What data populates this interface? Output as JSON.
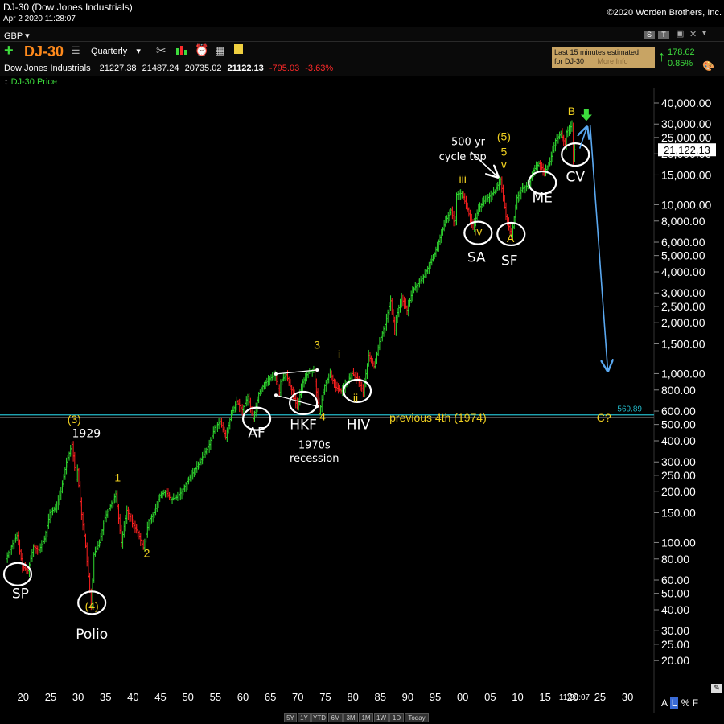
{
  "window": {
    "title": "DJ-30 (Dow Jones Industrials)",
    "copyright": "©2020 Worden Brothers, Inc.",
    "datetime": "Apr 2 2020 11:28:07"
  },
  "toolbar": {
    "currency": "GBP",
    "symbol": "DJ-30",
    "period": "Quarterly",
    "right_buttons": [
      "S",
      "T"
    ],
    "notice_line1": "Last 15 minutes estimated",
    "notice_line2": "for DJ-30",
    "notice_more": "More Info",
    "change": "178.62",
    "change_pct": "0.85%"
  },
  "quote": {
    "name": "Dow Jones Industrials",
    "open": "21227.38",
    "high": "21487.24",
    "low": "20735.02",
    "close": "21122.13",
    "change": "-795.03",
    "change_pct": "-3.63%"
  },
  "legend": {
    "series": "DJ-30 Price"
  },
  "chart_data": {
    "type": "candlestick",
    "yscale": "log",
    "ylim": [
      16,
      50000
    ],
    "xlim": [
      1917,
      2031
    ],
    "current_price_label": "21,122.13",
    "y_ticks": [
      "40,000.00",
      "30,000.00",
      "25,000.00",
      "20,000.00",
      "15,000.00",
      "10,000.00",
      "8,000.00",
      "6,000.00",
      "5,000.00",
      "4,000.00",
      "3,000.00",
      "2,500.00",
      "2,000.00",
      "1,500.00",
      "1,000.00",
      "800.00",
      "600.00",
      "500.00",
      "400.00",
      "300.00",
      "250.00",
      "200.00",
      "150.00",
      "100.00",
      "80.00",
      "60.00",
      "50.00",
      "40.00",
      "30.00",
      "25.00",
      "20.00"
    ],
    "y_tick_values": [
      40000,
      30000,
      25000,
      20000,
      15000,
      10000,
      8000,
      6000,
      5000,
      4000,
      3000,
      2500,
      2000,
      1500,
      1000,
      800,
      600,
      500,
      400,
      300,
      250,
      200,
      150,
      100,
      80,
      60,
      50,
      40,
      30,
      25,
      20
    ],
    "x_ticks": [
      "20",
      "25",
      "30",
      "35",
      "40",
      "45",
      "50",
      "55",
      "60",
      "65",
      "70",
      "75",
      "80",
      "85",
      "90",
      "95",
      "00",
      "05",
      "10",
      "15",
      "20",
      "25",
      "30"
    ],
    "x_tick_years": [
      1920,
      1925,
      1930,
      1935,
      1940,
      1945,
      1950,
      1955,
      1960,
      1965,
      1970,
      1975,
      1980,
      1985,
      1990,
      1995,
      2000,
      2005,
      2010,
      2015,
      2020,
      2025,
      2030
    ],
    "time_label": "11:28:07",
    "price_path": [
      [
        1917,
        80
      ],
      [
        1918,
        95
      ],
      [
        1919,
        110
      ],
      [
        1920,
        72
      ],
      [
        1921,
        68
      ],
      [
        1922,
        95
      ],
      [
        1923,
        90
      ],
      [
        1924,
        105
      ],
      [
        1925,
        150
      ],
      [
        1926,
        160
      ],
      [
        1927,
        200
      ],
      [
        1928,
        300
      ],
      [
        1929,
        381
      ],
      [
        1929.8,
        230
      ],
      [
        1930,
        270
      ],
      [
        1930.6,
        160
      ],
      [
        1931.5,
        95
      ],
      [
        1932.5,
        42
      ],
      [
        1933,
        85
      ],
      [
        1934,
        100
      ],
      [
        1935,
        140
      ],
      [
        1937,
        194
      ],
      [
        1938,
        100
      ],
      [
        1939,
        155
      ],
      [
        1940,
        130
      ],
      [
        1941,
        115
      ],
      [
        1942,
        93
      ],
      [
        1943,
        135
      ],
      [
        1944,
        150
      ],
      [
        1945,
        190
      ],
      [
        1946,
        200
      ],
      [
        1947,
        180
      ],
      [
        1948,
        185
      ],
      [
        1949,
        200
      ],
      [
        1950,
        230
      ],
      [
        1952,
        290
      ],
      [
        1954,
        380
      ],
      [
        1955,
        480
      ],
      [
        1956,
        520
      ],
      [
        1957,
        420
      ],
      [
        1958,
        580
      ],
      [
        1959,
        680
      ],
      [
        1960,
        610
      ],
      [
        1961,
        730
      ],
      [
        1962,
        540
      ],
      [
        1963,
        760
      ],
      [
        1964,
        870
      ],
      [
        1966,
        995
      ],
      [
        1966.7,
        750
      ],
      [
        1967,
        900
      ],
      [
        1968,
        985
      ],
      [
        1969,
        800
      ],
      [
        1970,
        631
      ],
      [
        1971,
        890
      ],
      [
        1972,
        1020
      ],
      [
        1973,
        1050
      ],
      [
        1974,
        578
      ],
      [
        1975,
        850
      ],
      [
        1976,
        1010
      ],
      [
        1977,
        830
      ],
      [
        1978,
        790
      ],
      [
        1979,
        880
      ],
      [
        1980,
        1000
      ],
      [
        1981,
        930
      ],
      [
        1982,
        777
      ],
      [
        1983,
        1280
      ],
      [
        1984,
        1100
      ],
      [
        1985,
        1550
      ],
      [
        1986,
        1950
      ],
      [
        1987,
        2700
      ],
      [
        1987.8,
        1740
      ],
      [
        1988,
        2150
      ],
      [
        1989,
        2800
      ],
      [
        1990,
        2370
      ],
      [
        1991,
        3100
      ],
      [
        1993,
        3750
      ],
      [
        1995,
        5100
      ],
      [
        1997,
        8000
      ],
      [
        1998,
        9300
      ],
      [
        1998.7,
        7500
      ],
      [
        1999,
        11500
      ],
      [
        2000,
        11700
      ],
      [
        2001,
        9400
      ],
      [
        2002,
        7280
      ],
      [
        2003,
        9500
      ],
      [
        2004,
        10500
      ],
      [
        2006,
        12000
      ],
      [
        2007,
        14165
      ],
      [
        2008,
        8500
      ],
      [
        2009,
        6470
      ],
      [
        2010,
        11000
      ],
      [
        2011,
        12500
      ],
      [
        2012,
        13000
      ],
      [
        2013,
        16000
      ],
      [
        2014,
        17500
      ],
      [
        2015,
        15600
      ],
      [
        2016,
        18000
      ],
      [
        2017,
        24000
      ],
      [
        2018,
        26500
      ],
      [
        2018.9,
        22000
      ],
      [
        2019,
        27000
      ],
      [
        2020,
        29568
      ],
      [
        2020.25,
        18213
      ],
      [
        2020.3,
        21122
      ]
    ],
    "annotations": [
      {
        "text": "(3)",
        "x": 1929.3,
        "y": 510,
        "color": "yellow"
      },
      {
        "text": "1929",
        "x": 1931.5,
        "y": 420,
        "color": "white"
      },
      {
        "text": "1",
        "x": 1937.2,
        "y": 230,
        "color": "yellow"
      },
      {
        "text": "2",
        "x": 1942.5,
        "y": 82,
        "color": "yellow"
      },
      {
        "text": "(4)",
        "x": 1932.5,
        "y": 40,
        "color": "yellow"
      },
      {
        "text": "Polio",
        "x": 1932.5,
        "y": 27,
        "color": "white"
      },
      {
        "text": "SP",
        "x": 1919.5,
        "y": 47,
        "color": "white"
      },
      {
        "text": "3",
        "x": 1973.5,
        "y": 1400,
        "color": "yellow"
      },
      {
        "text": "4",
        "x": 1974.5,
        "y": 530,
        "color": "yellow"
      },
      {
        "text": "AF",
        "x": 1962.5,
        "y": 420,
        "color": "white"
      },
      {
        "text": "HKF",
        "x": 1971,
        "y": 470,
        "color": "white"
      },
      {
        "text": "1970s",
        "x": 1973,
        "y": 360,
        "color": "white"
      },
      {
        "text": "recession",
        "x": 1973,
        "y": 300,
        "color": "white"
      },
      {
        "text": "i",
        "x": 1977.5,
        "y": 1240,
        "color": "yellow"
      },
      {
        "text": "ii",
        "x": 1980.5,
        "y": 680,
        "color": "yellow"
      },
      {
        "text": "HIV",
        "x": 1981,
        "y": 470,
        "color": "white"
      },
      {
        "text": "iii",
        "x": 2000,
        "y": 13500,
        "color": "yellow"
      },
      {
        "text": "iv",
        "x": 2002.8,
        "y": 6600,
        "color": "yellow"
      },
      {
        "text": "SA",
        "x": 2002.5,
        "y": 4600,
        "color": "white"
      },
      {
        "text": "(5)",
        "x": 2007.5,
        "y": 24000,
        "color": "yellow"
      },
      {
        "text": "5",
        "x": 2007.5,
        "y": 19500,
        "color": "yellow"
      },
      {
        "text": "v",
        "x": 2007.5,
        "y": 16500,
        "color": "yellow"
      },
      {
        "text": "A",
        "x": 2008.7,
        "y": 6000,
        "color": "yellow"
      },
      {
        "text": "SF",
        "x": 2008.5,
        "y": 4400,
        "color": "white"
      },
      {
        "text": "ME",
        "x": 2014.5,
        "y": 10300,
        "color": "white"
      },
      {
        "text": "CV",
        "x": 2020.5,
        "y": 13700,
        "color": "white"
      },
      {
        "text": "B",
        "x": 2019.8,
        "y": 34000,
        "color": "yellow"
      },
      {
        "text": "500 yr",
        "x": 2001,
        "y": 22500,
        "color": "white"
      },
      {
        "text": "cycle top",
        "x": 2000,
        "y": 18400,
        "color": "white"
      },
      {
        "text": "previous 4th (1974)",
        "x": 1995.5,
        "y": 520,
        "color": "yellow"
      },
      {
        "text": "C?",
        "x": 2025.7,
        "y": 520,
        "color": "yellow"
      }
    ],
    "circles": [
      {
        "x": 1919,
        "y": 65
      },
      {
        "x": 1932.5,
        "y": 44
      },
      {
        "x": 1962.5,
        "y": 540
      },
      {
        "x": 1971,
        "y": 670
      },
      {
        "x": 1980.8,
        "y": 790
      },
      {
        "x": 2002.8,
        "y": 6800
      },
      {
        "x": 2008.8,
        "y": 6700
      },
      {
        "x": 2014.5,
        "y": 13500
      },
      {
        "x": 2020.5,
        "y": 19800
      }
    ],
    "horizontal_line": {
      "value": 569.89,
      "label": "569.89",
      "color": "#22b8c8"
    },
    "arrows": [
      {
        "from": [
          2001.5,
          20500
        ],
        "to": [
          2006.4,
          14600
        ],
        "color": "white"
      },
      {
        "from": [
          2021.3,
          21500
        ],
        "to": [
          2022.6,
          28800
        ],
        "color": "#5aa8f0"
      },
      {
        "from": [
          2023.2,
          29500
        ],
        "to": [
          2026.4,
          1040
        ],
        "color": "#5aa8f0"
      }
    ],
    "marker": {
      "x": 2022.5,
      "y": 33000,
      "color": "#3ddc3d"
    },
    "trendlines": [
      [
        [
          1966,
          995
        ],
        [
          1973.5,
          1050
        ]
      ],
      [
        [
          1966,
          745
        ],
        [
          1973.5,
          640
        ]
      ]
    ]
  },
  "bottom": {
    "ranges": [
      "5Y",
      "1Y",
      "YTD",
      "6M",
      "3M",
      "1M",
      "1W",
      "1D",
      "Today"
    ],
    "scale_buttons": [
      "A",
      "L",
      "%",
      "F"
    ]
  }
}
